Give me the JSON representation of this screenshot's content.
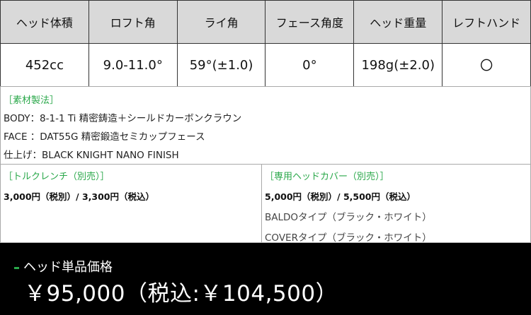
{
  "spec_table": {
    "headers": [
      "ヘッド体積",
      "ロフト角",
      "ライ角",
      "フェース角度",
      "ヘッド重量",
      "レフトハンド"
    ],
    "values": [
      "452cc",
      "9.0-11.0°",
      "59°(±1.0)",
      "0°",
      "198g(±2.0)",
      "〇"
    ]
  },
  "materials": {
    "title": "［素材製法］",
    "lines": [
      "BODY：8-1-1 Ti 精密鋳造＋シールドカーボンクラウン",
      "FACE ：DAT55G 精密鍛造セミカップフェース",
      "仕上げ：BLACK KNIGHT NANO FINISH"
    ]
  },
  "torque_wrench": {
    "title": "［トルクレンチ（別売）］",
    "price": "3,000円（税別）/ 3,300円（税込）"
  },
  "head_cover": {
    "title": "［専用ヘッドカバー（別売）］",
    "price": "5,000円（税別）/ 5,500円（税込）",
    "types": [
      "BALDOタイプ（ブラック・ホワイト）",
      "COVERタイプ（ブラック・ホワイト）"
    ]
  },
  "price": {
    "label": "ヘッド単品価格",
    "value": "￥95,000（税込:￥104,500）"
  },
  "colors": {
    "accent_green": "#2aa84a",
    "header_bg": "#d9d9d9",
    "price_bg": "#000000"
  }
}
